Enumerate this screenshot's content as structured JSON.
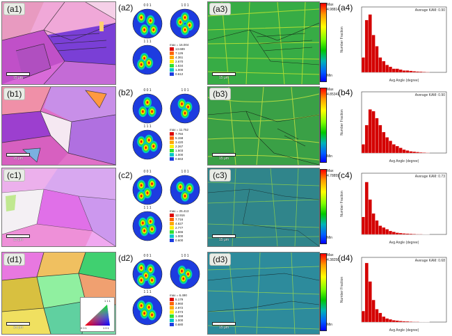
{
  "rows": [
    {
      "id": "a",
      "labels": [
        "(a1)",
        "(a2)",
        "(a3)",
        "(a4)"
      ],
      "scale": "15 μm",
      "pf_legend": {
        "max": "max = 16.004",
        "levels": [
          "13.689",
          "7.126",
          "4.361",
          "2.670",
          "1.634",
          "1.000",
          "0.612"
        ]
      },
      "kam_max": "4.98814"
    },
    {
      "id": "b",
      "labels": [
        "(b1)",
        "(b2)",
        "(b3)",
        "(b4)"
      ],
      "scale": "15 μm",
      "pf_legend": {
        "max": "max = 11.752",
        "levels": [
          "7.784",
          "5.158",
          "3.420",
          "2.267",
          "1.503",
          "1.000",
          "0.663"
        ]
      },
      "kam_max": "4.85341"
    },
    {
      "id": "c",
      "labels": [
        "(c1)",
        "(c2)",
        "(c3)",
        "(c4)"
      ],
      "scale": "15 μm",
      "pf_legend": {
        "max": "max = 25.413",
        "levels": [
          "12.916",
          "7.716",
          "4.627",
          "2.777",
          "1.666",
          "1.000",
          "0.600"
        ]
      },
      "kam_max": "4.78859"
    },
    {
      "id": "d",
      "labels": [
        "(d1)",
        "(d2)",
        "(d3)",
        "(d4)"
      ],
      "scale": "15 μm",
      "pf_legend": {
        "max": "max = 6.490",
        "levels": [
          "5.179",
          "3.960",
          "2.972",
          "2.073",
          "1.468",
          "1.000",
          "0.680"
        ]
      },
      "kam_max": "4.38250"
    }
  ],
  "pole_figure_indices": [
    "0 0 1",
    "1 0 1",
    "1 1 1"
  ],
  "ipf_key": {
    "corners": [
      "0 0 1",
      "1 0 1",
      "1 1 1"
    ]
  },
  "kam_scale": {
    "max_label": "Max",
    "min_label": "Min"
  },
  "chart_data": [
    {
      "type": "bar",
      "title": "Average KAM: 0.90",
      "xlabel": "Avg Angle (degree)",
      "ylabel": "Number Fraction",
      "xlim": [
        0,
        5
      ],
      "ylim": [
        0,
        0.35
      ],
      "bin_width": 0.2,
      "x": [
        0.1,
        0.3,
        0.5,
        0.7,
        0.9,
        1.1,
        1.3,
        1.5,
        1.7,
        1.9,
        2.1,
        2.3,
        2.5,
        2.7,
        2.9,
        3.1,
        3.3,
        3.5,
        3.7,
        3.9
      ],
      "values": [
        0.08,
        0.28,
        0.31,
        0.2,
        0.14,
        0.08,
        0.06,
        0.04,
        0.03,
        0.02,
        0.02,
        0.015,
        0.01,
        0.01,
        0.008,
        0.006,
        0.005,
        0.004,
        0.003,
        0.002
      ],
      "color": "#d40000"
    },
    {
      "type": "bar",
      "title": "Average KAM: 0.90",
      "xlabel": "Avg Angle (degree)",
      "ylabel": "Number Fraction",
      "xlim": [
        0,
        5
      ],
      "ylim": [
        0,
        0.35
      ],
      "bin_width": 0.2,
      "x": [
        0.1,
        0.3,
        0.5,
        0.7,
        0.9,
        1.1,
        1.3,
        1.5,
        1.7,
        1.9,
        2.1,
        2.3,
        2.5,
        2.7,
        2.9,
        3.1,
        3.3,
        3.5,
        3.7,
        3.9
      ],
      "values": [
        0.05,
        0.16,
        0.25,
        0.24,
        0.2,
        0.16,
        0.12,
        0.09,
        0.07,
        0.05,
        0.04,
        0.03,
        0.02,
        0.015,
        0.01,
        0.008,
        0.006,
        0.004,
        0.003,
        0.002
      ],
      "color": "#d40000"
    },
    {
      "type": "bar",
      "title": "Average KAM: 0.73",
      "xlabel": "Avg Angle (degree)",
      "ylabel": "Number Fraction",
      "xlim": [
        0,
        5
      ],
      "ylim": [
        0,
        0.35
      ],
      "bin_width": 0.2,
      "x": [
        0.1,
        0.3,
        0.5,
        0.7,
        0.9,
        1.1,
        1.3,
        1.5,
        1.7,
        1.9,
        2.1,
        2.3,
        2.5,
        2.7,
        2.9,
        3.1,
        3.3,
        3.5,
        3.7,
        3.9
      ],
      "values": [
        0.1,
        0.3,
        0.2,
        0.12,
        0.08,
        0.05,
        0.04,
        0.03,
        0.02,
        0.015,
        0.01,
        0.008,
        0.006,
        0.005,
        0.004,
        0.003,
        0.002,
        0.002,
        0.001,
        0.001
      ],
      "color": "#d40000"
    },
    {
      "type": "bar",
      "title": "Average KAM: 0.68",
      "xlabel": "Avg Angle (degree)",
      "ylabel": "Number Fraction",
      "xlim": [
        0,
        5
      ],
      "ylim": [
        0,
        0.35
      ],
      "bin_width": 0.2,
      "x": [
        0.1,
        0.3,
        0.5,
        0.7,
        0.9,
        1.1,
        1.3,
        1.5,
        1.7,
        1.9,
        2.1,
        2.3,
        2.5,
        2.7,
        2.9,
        3.1,
        3.3,
        3.5,
        3.7,
        3.9
      ],
      "values": [
        0.06,
        0.32,
        0.22,
        0.12,
        0.07,
        0.05,
        0.03,
        0.02,
        0.015,
        0.01,
        0.008,
        0.006,
        0.005,
        0.004,
        0.003,
        0.002,
        0.002,
        0.001,
        0.001,
        0.001
      ],
      "color": "#d40000"
    }
  ]
}
